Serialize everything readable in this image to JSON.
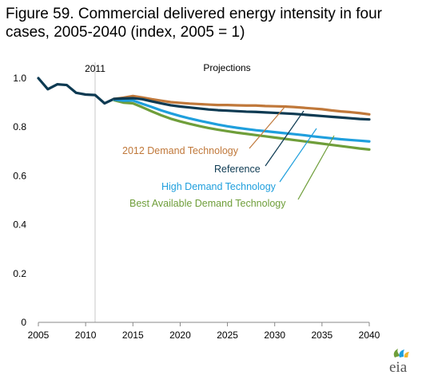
{
  "title": "Figure 59. Commercial delivered energy intensity in four cases, 2005-2040 (index, 2005 = 1)",
  "brand": "eia",
  "colors": {
    "reference": "#0d3a52",
    "demand2012": "#c0783a",
    "high": "#1f9fdd",
    "bat": "#6f9e3a",
    "axis": "#888888",
    "divider": "#c8c8c8"
  },
  "chart_data": {
    "type": "line",
    "title": "Figure 59. Commercial delivered energy intensity in four cases, 2005-2040 (index, 2005 = 1)",
    "xlabel": "",
    "ylabel": "",
    "xlim": [
      2005,
      2040
    ],
    "ylim": [
      0,
      1.0
    ],
    "x_ticks": [
      2005,
      2010,
      2015,
      2020,
      2025,
      2030,
      2035,
      2040
    ],
    "y_ticks": [
      0,
      0.2,
      0.4,
      0.6,
      0.8,
      1.0
    ],
    "y_tick_labels": [
      "0",
      "0.2",
      "0.4",
      "0.6",
      "0.8",
      "1.0"
    ],
    "annotations": {
      "history_end_label": "2011",
      "history_end_year": 2011,
      "projections_label": "Projections"
    },
    "grid": false,
    "history": {
      "x": [
        2005,
        2006,
        2007,
        2008,
        2009,
        2010,
        2011,
        2012,
        2013
      ],
      "values": [
        1.0,
        0.955,
        0.975,
        0.972,
        0.94,
        0.933,
        0.931,
        0.897,
        0.915
      ]
    },
    "series": [
      {
        "name": "2012 Demand Technology",
        "color_key": "demand2012",
        "x": [
          2013,
          2014,
          2015,
          2016,
          2017,
          2018,
          2019,
          2020,
          2021,
          2022,
          2023,
          2024,
          2025,
          2026,
          2027,
          2028,
          2029,
          2030,
          2031,
          2032,
          2033,
          2034,
          2035,
          2036,
          2037,
          2038,
          2039,
          2040
        ],
        "values": [
          0.915,
          0.92,
          0.927,
          0.921,
          0.914,
          0.908,
          0.902,
          0.899,
          0.896,
          0.894,
          0.892,
          0.89,
          0.89,
          0.889,
          0.888,
          0.888,
          0.886,
          0.885,
          0.884,
          0.882,
          0.879,
          0.876,
          0.873,
          0.868,
          0.864,
          0.861,
          0.857,
          0.852
        ]
      },
      {
        "name": "Reference",
        "color_key": "reference",
        "x": [
          2013,
          2014,
          2015,
          2016,
          2017,
          2018,
          2019,
          2020,
          2021,
          2022,
          2023,
          2024,
          2025,
          2026,
          2027,
          2028,
          2029,
          2030,
          2031,
          2032,
          2033,
          2034,
          2035,
          2036,
          2037,
          2038,
          2039,
          2040
        ],
        "values": [
          0.915,
          0.917,
          0.918,
          0.914,
          0.905,
          0.897,
          0.889,
          0.884,
          0.88,
          0.876,
          0.872,
          0.869,
          0.867,
          0.865,
          0.863,
          0.862,
          0.86,
          0.858,
          0.856,
          0.854,
          0.851,
          0.848,
          0.845,
          0.842,
          0.839,
          0.836,
          0.833,
          0.831
        ]
      },
      {
        "name": "High Demand Technology",
        "color_key": "high",
        "x": [
          2013,
          2014,
          2015,
          2016,
          2017,
          2018,
          2019,
          2020,
          2021,
          2022,
          2023,
          2024,
          2025,
          2026,
          2027,
          2028,
          2029,
          2030,
          2031,
          2032,
          2033,
          2034,
          2035,
          2036,
          2037,
          2038,
          2039,
          2040
        ],
        "values": [
          0.912,
          0.908,
          0.909,
          0.895,
          0.882,
          0.868,
          0.856,
          0.845,
          0.835,
          0.826,
          0.818,
          0.81,
          0.803,
          0.797,
          0.792,
          0.787,
          0.783,
          0.779,
          0.775,
          0.771,
          0.767,
          0.762,
          0.758,
          0.754,
          0.75,
          0.747,
          0.744,
          0.741
        ]
      },
      {
        "name": "Best Available Demand Technology",
        "color_key": "bat",
        "x": [
          2013,
          2014,
          2015,
          2016,
          2017,
          2018,
          2019,
          2020,
          2021,
          2022,
          2023,
          2024,
          2025,
          2026,
          2027,
          2028,
          2029,
          2030,
          2031,
          2032,
          2033,
          2034,
          2035,
          2036,
          2037,
          2038,
          2039,
          2040
        ],
        "values": [
          0.91,
          0.9,
          0.897,
          0.881,
          0.864,
          0.848,
          0.834,
          0.823,
          0.813,
          0.804,
          0.796,
          0.789,
          0.783,
          0.777,
          0.772,
          0.767,
          0.762,
          0.757,
          0.752,
          0.747,
          0.742,
          0.737,
          0.732,
          0.727,
          0.722,
          0.717,
          0.712,
          0.708
        ]
      }
    ]
  }
}
